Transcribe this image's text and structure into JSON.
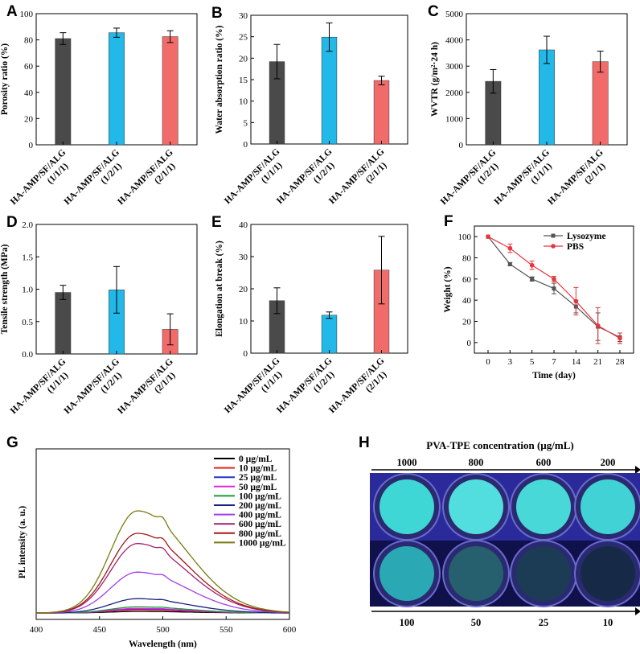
{
  "colors": {
    "dark": "#4a4a4a",
    "blue": "#22b8e8",
    "red": "#f26b6b",
    "lyso": "#555555",
    "pbs": "#e8343a"
  },
  "chart_data": [
    {
      "panel": "A",
      "type": "bar",
      "ylabel": "Porosity ratio (%)",
      "ylim": [
        0,
        100
      ],
      "yticks": [
        "0",
        "20",
        "40",
        "60",
        "80",
        "100"
      ],
      "categories": [
        "HA-AMP/SF/ALG|(1/1/1)",
        "HA-AMP/SF/ALG|(1/2/1)",
        "HA-AMP/SF/ALG|(2/1/1)"
      ],
      "values": [
        81,
        85.5,
        82.5
      ],
      "errors": [
        4.5,
        3.5,
        4.5
      ]
    },
    {
      "panel": "B",
      "type": "bar",
      "ylabel": "Water absorption ratio (%)",
      "ylim": [
        0,
        30
      ],
      "yticks": [
        "0",
        "5",
        "10",
        "15",
        "20",
        "25",
        "30"
      ],
      "categories": [
        "HA-AMP/SF/ALG|(1/1/1)",
        "HA-AMP/SF/ALG|(1/2/1)",
        "HA-AMP/SF/ALG|(2/1/1)"
      ],
      "values": [
        19.2,
        24.9,
        14.8
      ],
      "errors": [
        4,
        3.3,
        1
      ]
    },
    {
      "panel": "C",
      "type": "bar",
      "ylabel": "WVTR (g/m²·24 h)",
      "ylim": [
        0,
        5000
      ],
      "yticks": [
        "0",
        "1000",
        "2000",
        "3000",
        "4000",
        "5000"
      ],
      "categories": [
        "HA-AMP/SF/ALG|(1/2/1)",
        "HA-AMP/SF/ALG|(1/1/1)",
        "HA-AMP/SF/ALG|(2/1/1)"
      ],
      "values": [
        2420,
        3620,
        3170
      ],
      "errors": [
        450,
        520,
        400
      ]
    },
    {
      "panel": "D",
      "type": "bar",
      "ylabel": "Tensile strength (MPa)",
      "ylim": [
        0,
        2.0
      ],
      "yticks": [
        "0.0",
        "0.5",
        "1.0",
        "1.5",
        "2.0"
      ],
      "categories": [
        "HA-AMP/SF/ALG|(1/1/1)",
        "HA-AMP/SF/ALG|(1/2/1)",
        "HA-AMP/SF/ALG|(2/1/1)"
      ],
      "values": [
        0.95,
        0.99,
        0.38
      ],
      "errors": [
        0.11,
        0.36,
        0.24
      ]
    },
    {
      "panel": "E",
      "type": "bar",
      "ylabel": "Elongation at break (%)",
      "ylim": [
        0,
        40
      ],
      "yticks": [
        "0",
        "10",
        "20",
        "30",
        "40"
      ],
      "categories": [
        "HA-AMP/SF/ALG|(1/1/1)",
        "HA-AMP/SF/ALG|(1/2/1)",
        "HA-AMP/SF/ALG|(2/1/1)"
      ],
      "values": [
        16.3,
        11.8,
        25.8
      ],
      "errors": [
        4,
        1,
        10.5
      ]
    },
    {
      "panel": "F",
      "type": "line",
      "xlabel": "Time (day)",
      "ylabel": "Weight (%)",
      "ylim": [
        -10,
        110
      ],
      "x": [
        "0",
        "3",
        "5",
        "7",
        "14",
        "21",
        "28"
      ],
      "yticks": [
        "0",
        "20",
        "40",
        "60",
        "80",
        "100"
      ],
      "series": [
        {
          "name": "Lysozyme",
          "values": [
            100,
            74,
            60,
            51,
            34,
            15,
            5
          ],
          "errors": [
            0,
            1.5,
            2,
            5,
            6,
            13,
            4
          ]
        },
        {
          "name": "PBS",
          "values": [
            100,
            89,
            73,
            60,
            39,
            16,
            4
          ],
          "errors": [
            0,
            4,
            4,
            2.5,
            13,
            17,
            5
          ]
        }
      ]
    },
    {
      "panel": "G",
      "type": "line",
      "xlabel": "Wavelength (nm)",
      "ylabel": "PL intensity (a. u.)",
      "xlim": [
        400,
        600
      ],
      "xticks": [
        "400",
        "450",
        "500",
        "550",
        "600"
      ],
      "series": [
        {
          "name": "0 µg/mL",
          "color": "#000000",
          "peak": 0.015
        },
        {
          "name": "10 µg/mL",
          "color": "#e8262a",
          "peak": 0.03
        },
        {
          "name": "25 µg/mL",
          "color": "#2233cc",
          "peak": 0.04
        },
        {
          "name": "50 µg/mL",
          "color": "#dd22dd",
          "peak": 0.045
        },
        {
          "name": "100 µg/mL",
          "color": "#1a9a3a",
          "peak": 0.06
        },
        {
          "name": "200 µg/mL",
          "color": "#1a237e",
          "peak": 0.14
        },
        {
          "name": "400 µg/mL",
          "color": "#a23ce8",
          "peak": 0.4
        },
        {
          "name": "600 µg/mL",
          "color": "#a0206a",
          "peak": 0.68
        },
        {
          "name": "800 µg/mL",
          "color": "#a01818",
          "peak": 0.78
        },
        {
          "name": "1000 µg/mL",
          "color": "#7c7a10",
          "peak": 1.0
        }
      ]
    }
  ],
  "panel_h": {
    "label": "H",
    "title": "PVA-TPE concentration (µg/mL)",
    "top_row": [
      "1000",
      "800",
      "600",
      "200"
    ],
    "bottom_row": [
      "100",
      "50",
      "25",
      "10"
    ]
  }
}
